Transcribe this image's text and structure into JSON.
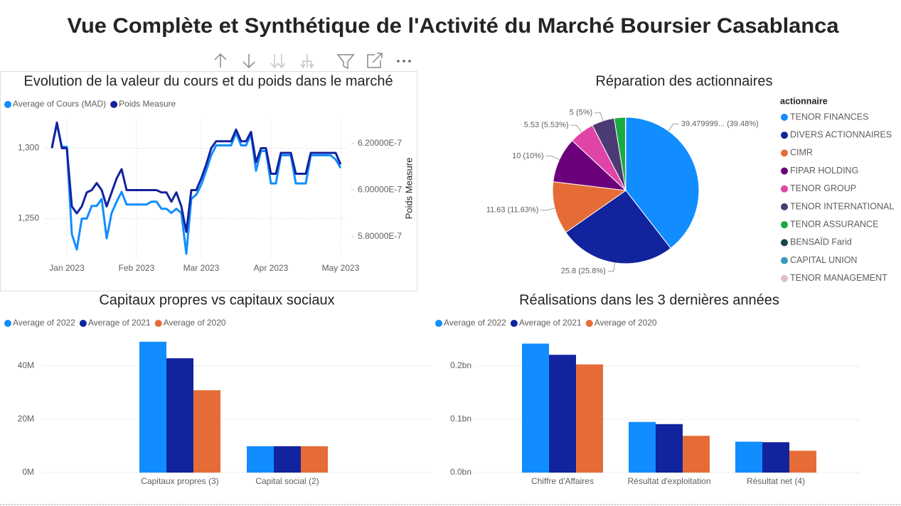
{
  "title": "Vue Complète et Synthétique de l'Activité du Marché Boursier Casablanca",
  "chart_data": [
    {
      "type": "line",
      "title": "Evolution de la valeur du cours et du poids dans le marché",
      "categories": [
        null,
        null,
        null,
        "Jan 2023",
        null,
        null,
        null,
        null,
        null,
        null,
        null,
        null,
        null,
        null,
        null,
        null,
        null,
        "Feb 2023",
        null,
        null,
        null,
        null,
        null,
        null,
        null,
        null,
        null,
        null,
        null,
        null,
        "Mar 2023",
        null,
        null,
        null,
        null,
        null,
        null,
        null,
        null,
        null,
        null,
        null,
        null,
        null,
        "Apr 2023",
        null,
        null,
        null,
        null,
        null,
        null,
        null,
        null,
        null,
        null,
        null,
        null,
        null,
        "May 2023"
      ],
      "series": [
        {
          "name": "Average of Cours (MAD)",
          "color": "#118DFF",
          "values": [
            1301,
            1317,
            1301,
            1301,
            1239,
            1228,
            1250,
            1250,
            1259,
            1259,
            1264,
            1236,
            1254,
            1262,
            1269,
            1260,
            1260,
            1260,
            1260,
            1260,
            1262,
            1262,
            1257,
            1257,
            1254,
            1257,
            1254,
            1225,
            1264,
            1267,
            1274,
            1284,
            1295,
            1302,
            1302,
            1302,
            1302,
            1311,
            1302,
            1302,
            1310,
            1284,
            1298,
            1298,
            1275,
            1275,
            1295,
            1295,
            1295,
            1275,
            1275,
            1275,
            1295,
            1295,
            1295,
            1295,
            1295,
            1292,
            1286
          ]
        },
        {
          "name": "Poids Measure",
          "color": "#12239E",
          "axis": "y2",
          "values": [
            6.18e-07,
            6.29e-07,
            6.18e-07,
            6.18e-07,
            5.93e-07,
            5.9e-07,
            5.93e-07,
            5.99e-07,
            6e-07,
            6.03e-07,
            6e-07,
            5.93e-07,
            5.99e-07,
            6.05e-07,
            6.09e-07,
            6e-07,
            6e-07,
            6e-07,
            6e-07,
            6e-07,
            6e-07,
            6e-07,
            5.99e-07,
            5.99e-07,
            5.95e-07,
            5.99e-07,
            5.93e-07,
            5.82e-07,
            6e-07,
            6e-07,
            6.05e-07,
            6.11e-07,
            6.18e-07,
            6.21e-07,
            6.21e-07,
            6.21e-07,
            6.21e-07,
            6.26e-07,
            6.21e-07,
            6.21e-07,
            6.25e-07,
            6.12e-07,
            6.18e-07,
            6.18e-07,
            6.07e-07,
            6.07e-07,
            6.16e-07,
            6.16e-07,
            6.16e-07,
            6.07e-07,
            6.07e-07,
            6.07e-07,
            6.16e-07,
            6.16e-07,
            6.16e-07,
            6.16e-07,
            6.16e-07,
            6.16e-07,
            6.11e-07
          ]
        }
      ],
      "ylim": [
        1221,
        1322
      ],
      "yticks": [
        {
          "value": 1250,
          "label": "1,250"
        },
        {
          "value": 1300,
          "label": "1,300"
        }
      ],
      "y2lim": [
        5.702e-07,
        6.313e-07
      ],
      "y2ticks": [
        {
          "value": 5.8e-07,
          "label": "5.80000E-7"
        },
        {
          "value": 6e-07,
          "label": "6.00000E-7"
        },
        {
          "value": 6.2e-07,
          "label": "6.20000E-7"
        }
      ],
      "y2label": "Poids Measure",
      "grid": true
    },
    {
      "type": "pie",
      "title": "Réparation des actionnaires",
      "legend_title": "actionnaire",
      "categories": [
        "TENOR FINANCES",
        "DIVERS ACTIONNAIRES",
        "CIMR",
        "FIPAR HOLDING",
        "TENOR GROUP",
        "TENOR INTERNATIONAL",
        "TENOR ASSURANCE",
        "BENSAÏD Farid",
        "CAPITAL UNION",
        "TENOR MANAGEMENT"
      ],
      "values": [
        39.48,
        25.8,
        11.63,
        10,
        5.53,
        5,
        2.47,
        0.03,
        0.02,
        0.02
      ],
      "value_labels": [
        "39.479999... (39.48%)",
        "25.8 (25.8%)",
        "11.63 (11.63%)",
        "10 (10%)",
        "5.53 (5.53%)",
        "5 (5%)",
        null,
        null,
        null,
        null
      ],
      "colors": [
        "#118DFF",
        "#12239E",
        "#E66C37",
        "#6B007B",
        "#E044A7",
        "#4B3A73",
        "#1AAB40",
        "#15474A",
        "#3599B8",
        "#DFBFBF"
      ]
    },
    {
      "type": "bar",
      "title": "Capitaux propres vs capitaux sociaux",
      "categories": [
        "Capitaux propres (3)",
        "Capital social (2)"
      ],
      "series": [
        {
          "name": "Average of 2022",
          "color": "#118DFF",
          "values": [
            49100000,
            9900000
          ]
        },
        {
          "name": "Average of 2021",
          "color": "#12239E",
          "values": [
            42900000,
            9900000
          ]
        },
        {
          "name": "Average of 2020",
          "color": "#E66C37",
          "values": [
            30900000,
            9900000
          ]
        }
      ],
      "ylim": [
        0,
        52000000
      ],
      "yticks": [
        {
          "value": 0,
          "label": "0M"
        },
        {
          "value": 20000000,
          "label": "20M"
        },
        {
          "value": 40000000,
          "label": "40M"
        }
      ],
      "grid": true
    },
    {
      "type": "bar",
      "title": "Réalisations dans les 3 dernières années",
      "categories": [
        "Chiffre d'Affaires",
        "Résultat d'exploitation",
        "Résultat net (4)"
      ],
      "series": [
        {
          "name": "Average of 2022",
          "color": "#118DFF",
          "values": [
            242000000,
            95000000,
            58000000
          ]
        },
        {
          "name": "Average of 2021",
          "color": "#12239E",
          "values": [
            221000000,
            91000000,
            57000000
          ]
        },
        {
          "name": "Average of 2020",
          "color": "#E66C37",
          "values": [
            203000000,
            69000000,
            41000000
          ]
        }
      ],
      "ylim": [
        0,
        260000000
      ],
      "yticks": [
        {
          "value": 0,
          "label": "0.0bn"
        },
        {
          "value": 100000000,
          "label": "0.1bn"
        },
        {
          "value": 200000000,
          "label": "0.2bn"
        }
      ],
      "grid": true
    }
  ]
}
